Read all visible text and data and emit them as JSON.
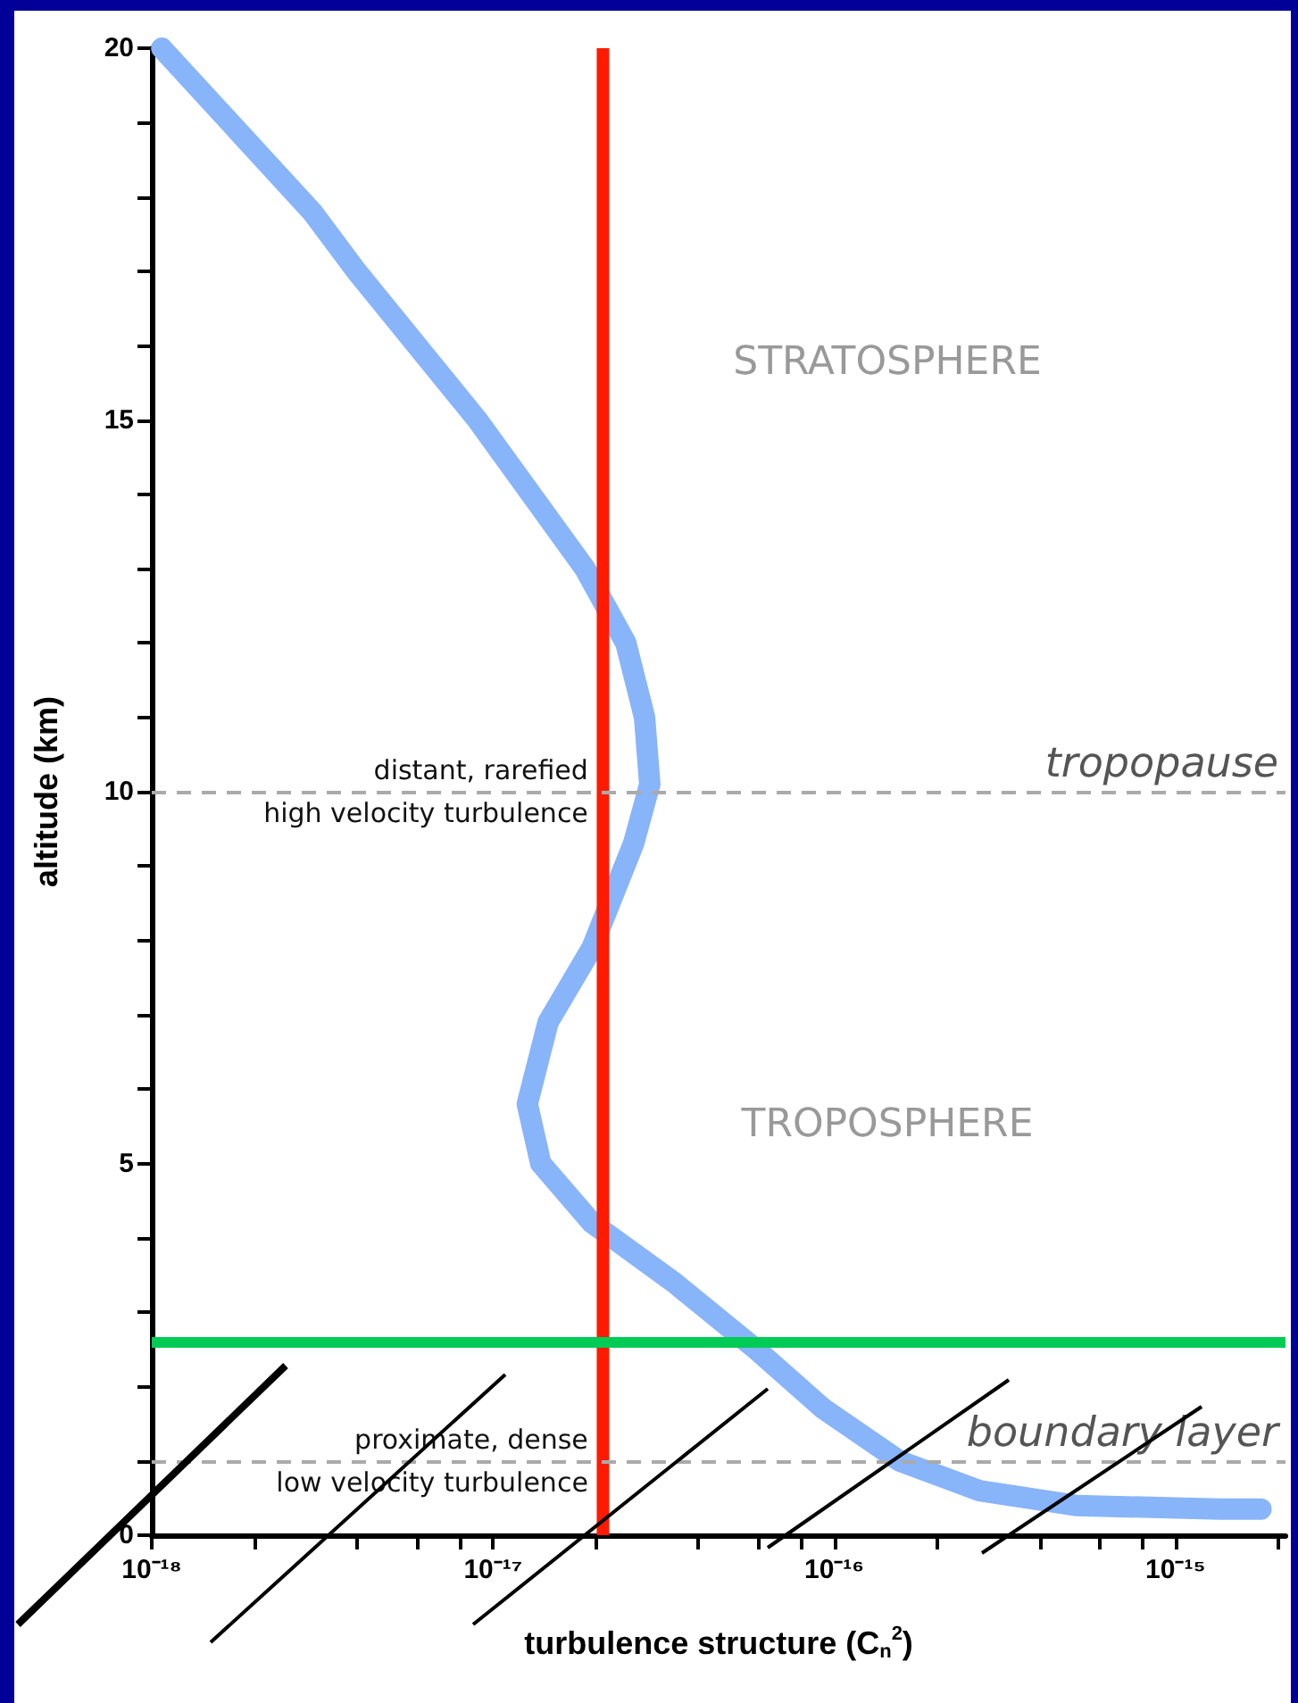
{
  "chart_data": {
    "type": "line",
    "xlabel": "turbulence structure (C$_{n}$$^{2}$)",
    "ylabel": "altitude (km)",
    "x": [
      1.07e-18,
      2.95e-18,
      3.98e-18,
      9e-18,
      1.86e-17,
      2.45e-17,
      2.78e-17,
      2.88e-17,
      2.58e-17,
      1.95e-17,
      1.45e-17,
      1.26e-17,
      1.38e-17,
      1.95e-17,
      3.39e-17,
      5.9e-17,
      9.3e-17,
      1.55e-16,
      2.66e-16,
      5.1e-16,
      1.35e-15,
      1.55e-15,
      1.78e-15
    ],
    "series": [
      {
        "color": "#88b4fa",
        "values": [
          20,
          17.8,
          17.0,
          15.0,
          13.0,
          12.0,
          11.0,
          10.1,
          9.3,
          7.9,
          6.9,
          5.8,
          5.0,
          4.2,
          3.4,
          2.5,
          1.7,
          1.0,
          0.6,
          0.4,
          0.35,
          0.35,
          0.35
        ]
      }
    ],
    "log": "x",
    "xlim": [
      1e-18,
      2.1e-15
    ],
    "ylim": [
      0,
      20
    ],
    "xticks": [
      {
        "value": 1e-18,
        "label": "10⁻¹⁸"
      },
      {
        "value": 2e-18,
        "label": null
      },
      {
        "value": 4e-18,
        "label": null
      },
      {
        "value": 6e-18,
        "label": null
      },
      {
        "value": 8e-18,
        "label": null
      },
      {
        "value": 1e-17,
        "label": "10⁻¹⁷"
      },
      {
        "value": 2e-17,
        "label": null
      },
      {
        "value": 4e-17,
        "label": null
      },
      {
        "value": 6e-17,
        "label": null
      },
      {
        "value": 8e-17,
        "label": null
      },
      {
        "value": 1e-16,
        "label": "10⁻¹⁶"
      },
      {
        "value": 2e-16,
        "label": null
      },
      {
        "value": 4e-16,
        "label": null
      },
      {
        "value": 6e-16,
        "label": null
      },
      {
        "value": 8e-16,
        "label": null
      },
      {
        "value": 1e-15,
        "label": "10⁻¹⁵"
      },
      {
        "value": 2e-15,
        "label": null
      }
    ],
    "yticks": [
      0,
      {
        "value": 1,
        "label": null
      },
      {
        "value": 2,
        "label": null
      },
      {
        "value": 3,
        "label": null
      },
      {
        "value": 4,
        "label": null
      },
      5,
      {
        "value": 6,
        "label": null
      },
      {
        "value": 7,
        "label": null
      },
      {
        "value": 8,
        "label": null
      },
      {
        "value": 9,
        "label": null
      },
      10,
      {
        "value": 11,
        "label": null
      },
      {
        "value": 12,
        "label": null
      },
      {
        "value": 13,
        "label": null
      },
      {
        "value": 14,
        "label": null
      },
      15,
      {
        "value": 16,
        "label": null
      },
      {
        "value": 17,
        "label": null
      },
      {
        "value": 18,
        "label": null
      },
      {
        "value": 19,
        "label": null
      },
      20
    ],
    "ref_lines": [
      {
        "axis": "y",
        "value": 10,
        "label": "tropopause",
        "color": "#aaaaaa",
        "line_style": "dashed"
      },
      {
        "axis": "y",
        "value": 1,
        "label": "boundary layer",
        "color": "#aaaaaa",
        "line_style": "dashed"
      },
      {
        "axis": "x",
        "value": 2.1e-17,
        "color": "#ff1a00",
        "line_style": "solid"
      },
      {
        "axis": "y",
        "value": 2.6,
        "color": "#00cc55",
        "line_style": "solid"
      }
    ],
    "annotations": [
      "STRATOSPHERE",
      "TROPOSPHERE",
      {
        "text": "distant, rarefied\nhigh velocity turbulence",
        "x": 1.9e-17,
        "y": 10
      },
      {
        "text": "proximate, dense\nlow velocity turbulence",
        "x": 1.9e-17,
        "y": 1
      }
    ],
    "grid": false,
    "line_style": "solid"
  }
}
